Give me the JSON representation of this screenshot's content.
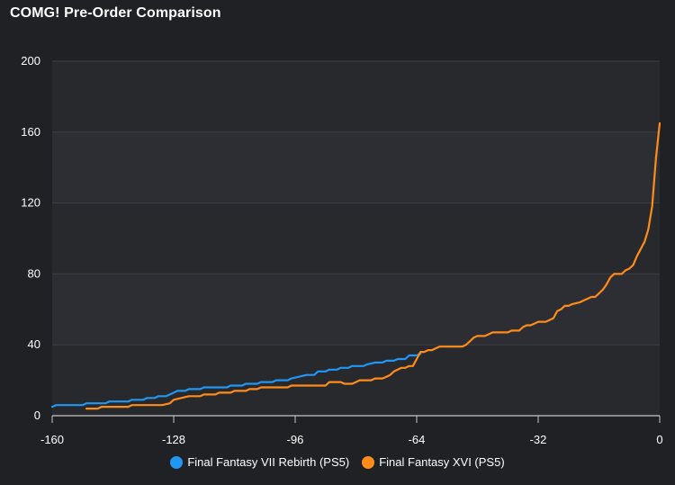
{
  "title": "COMG! Pre-Order Comparison",
  "chart_data": {
    "type": "line",
    "title": "COMG! Pre-Order Comparison",
    "xlabel": "",
    "ylabel": "",
    "xlim": [
      -160,
      0
    ],
    "ylim": [
      0,
      200
    ],
    "x_ticks": [
      -160,
      -128,
      -96,
      -64,
      -32,
      0
    ],
    "y_ticks": [
      0,
      40,
      80,
      120,
      160,
      200
    ],
    "grid": true,
    "legend_position": "bottom",
    "series": [
      {
        "name": "Final Fantasy VII Rebirth (PS5)",
        "color": "#2196f3",
        "points": [
          [
            -160,
            5
          ],
          [
            -159,
            6
          ],
          [
            -152,
            6
          ],
          [
            -151,
            7
          ],
          [
            -146,
            7
          ],
          [
            -145,
            8
          ],
          [
            -140,
            8
          ],
          [
            -139,
            9
          ],
          [
            -136,
            9
          ],
          [
            -135,
            10
          ],
          [
            -133,
            10
          ],
          [
            -132,
            11
          ],
          [
            -130,
            11
          ],
          [
            -129,
            12
          ],
          [
            -128,
            13
          ],
          [
            -127,
            14
          ],
          [
            -125,
            14
          ],
          [
            -124,
            15
          ],
          [
            -121,
            15
          ],
          [
            -120,
            16
          ],
          [
            -114,
            16
          ],
          [
            -113,
            17
          ],
          [
            -110,
            17
          ],
          [
            -109,
            18
          ],
          [
            -106,
            18
          ],
          [
            -105,
            19
          ],
          [
            -102,
            19
          ],
          [
            -101,
            20
          ],
          [
            -98,
            20
          ],
          [
            -97,
            21
          ],
          [
            -95,
            22
          ],
          [
            -93,
            23
          ],
          [
            -91,
            23
          ],
          [
            -90,
            25
          ],
          [
            -88,
            25
          ],
          [
            -87,
            26
          ],
          [
            -85,
            26
          ],
          [
            -84,
            27
          ],
          [
            -82,
            27
          ],
          [
            -81,
            28
          ],
          [
            -78,
            28
          ],
          [
            -77,
            29
          ],
          [
            -75,
            30
          ],
          [
            -73,
            30
          ],
          [
            -72,
            31
          ],
          [
            -70,
            31
          ],
          [
            -69,
            32
          ],
          [
            -67,
            32
          ],
          [
            -66,
            34
          ],
          [
            -64,
            34
          ],
          [
            -63,
            35
          ]
        ]
      },
      {
        "name": "Final Fantasy XVI (PS5)",
        "color": "#ff8c1a",
        "points": [
          [
            -151,
            4
          ],
          [
            -148,
            4
          ],
          [
            -147,
            5
          ],
          [
            -140,
            5
          ],
          [
            -139,
            6
          ],
          [
            -131,
            6
          ],
          [
            -129,
            7
          ],
          [
            -128,
            9
          ],
          [
            -126,
            10
          ],
          [
            -124,
            11
          ],
          [
            -121,
            11
          ],
          [
            -120,
            12
          ],
          [
            -117,
            12
          ],
          [
            -116,
            13
          ],
          [
            -113,
            13
          ],
          [
            -112,
            14
          ],
          [
            -109,
            14
          ],
          [
            -108,
            15
          ],
          [
            -106,
            15
          ],
          [
            -105,
            16
          ],
          [
            -98,
            16
          ],
          [
            -97,
            17
          ],
          [
            -88,
            17
          ],
          [
            -87,
            19
          ],
          [
            -84,
            19
          ],
          [
            -83,
            18
          ],
          [
            -81,
            18
          ],
          [
            -80,
            19
          ],
          [
            -79,
            20
          ],
          [
            -76,
            20
          ],
          [
            -75,
            21
          ],
          [
            -73,
            21
          ],
          [
            -72,
            22
          ],
          [
            -71,
            23
          ],
          [
            -70,
            25
          ],
          [
            -69,
            26
          ],
          [
            -68,
            27
          ],
          [
            -67,
            27
          ],
          [
            -66,
            28
          ],
          [
            -65,
            28
          ],
          [
            -64,
            32
          ],
          [
            -63,
            36
          ],
          [
            -62,
            36
          ],
          [
            -61,
            37
          ],
          [
            -60,
            37
          ],
          [
            -59,
            38
          ],
          [
            -58,
            39
          ],
          [
            -57,
            39
          ],
          [
            -52,
            39
          ],
          [
            -51,
            40
          ],
          [
            -50,
            42
          ],
          [
            -49,
            44
          ],
          [
            -48,
            45
          ],
          [
            -46,
            45
          ],
          [
            -45,
            46
          ],
          [
            -44,
            47
          ],
          [
            -40,
            47
          ],
          [
            -39,
            48
          ],
          [
            -37,
            48
          ],
          [
            -36,
            50
          ],
          [
            -35,
            51
          ],
          [
            -34,
            51
          ],
          [
            -33,
            52
          ],
          [
            -32,
            53
          ],
          [
            -30,
            53
          ],
          [
            -29,
            54
          ],
          [
            -28,
            55
          ],
          [
            -27,
            59
          ],
          [
            -26,
            60
          ],
          [
            -25,
            62
          ],
          [
            -24,
            62
          ],
          [
            -23,
            63
          ],
          [
            -21,
            64
          ],
          [
            -20,
            65
          ],
          [
            -19,
            66
          ],
          [
            -18,
            67
          ],
          [
            -17,
            67
          ],
          [
            -16,
            69
          ],
          [
            -15,
            71
          ],
          [
            -14,
            74
          ],
          [
            -13,
            78
          ],
          [
            -12,
            80
          ],
          [
            -10,
            80
          ],
          [
            -9,
            82
          ],
          [
            -8,
            83
          ],
          [
            -7,
            85
          ],
          [
            -6,
            90
          ],
          [
            -5,
            94
          ],
          [
            -4,
            98
          ],
          [
            -3,
            105
          ],
          [
            -2,
            118
          ],
          [
            -1,
            145
          ],
          [
            0,
            165
          ]
        ]
      }
    ]
  }
}
